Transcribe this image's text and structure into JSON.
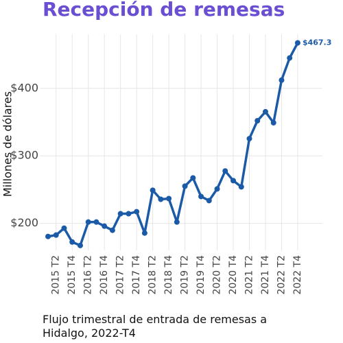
{
  "chart_data": {
    "type": "line",
    "title": "Recepción de remesas",
    "ylabel": "Millones de dólares",
    "caption": "Flujo trimestral de entrada de remesas a Hidalgo, 2022-T4",
    "categories": [
      null,
      "2015 T2",
      null,
      "2015 T4",
      null,
      "2016 T2",
      null,
      "2016 T4",
      null,
      "2017 T2",
      null,
      "2017 T4",
      null,
      "2018 T2",
      null,
      "2018 T4",
      null,
      "2019 T2",
      null,
      "2019 T4",
      null,
      "2020 T2",
      null,
      "2020 T4",
      null,
      "2021 T2",
      null,
      "2021 T4",
      null,
      "2022 T2",
      null,
      "2022 T4"
    ],
    "values": [
      180.6,
      182.7,
      192.9,
      172.4,
      167.3,
      202,
      202,
      195.9,
      189.8,
      214.3,
      214.3,
      217.3,
      185.7,
      249,
      235.7,
      236.7,
      202,
      255.1,
      267.3,
      239.8,
      233.7,
      251,
      277.6,
      263.3,
      254.1,
      325.5,
      352,
      365.3,
      349,
      412.2,
      444.9,
      467.3
    ],
    "value_labels": [
      null,
      null,
      null,
      null,
      null,
      null,
      null,
      null,
      null,
      null,
      null,
      null,
      null,
      null,
      null,
      null,
      null,
      null,
      null,
      null,
      null,
      null,
      null,
      null,
      null,
      null,
      null,
      null,
      null,
      null,
      null,
      "$467.3"
    ],
    "color": "#1b5aa6",
    "ylim": [
      160,
      480
    ],
    "yticks": [
      {
        "value": 200,
        "label": "$200"
      },
      {
        "value": 300,
        "label": "$300"
      },
      {
        "value": 400,
        "label": "$400"
      }
    ],
    "grid": true
  }
}
